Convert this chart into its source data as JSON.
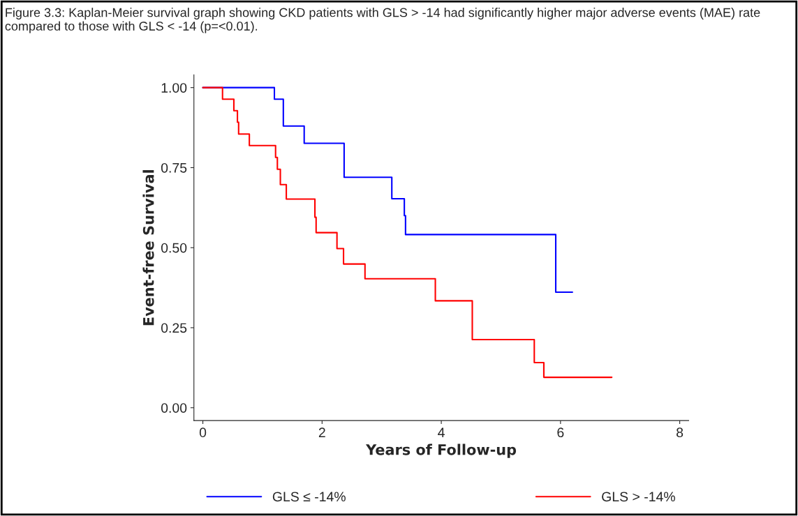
{
  "chart_data": {
    "type": "step",
    "title": "Figure 3.3: Kaplan-Meier survival graph showing CKD patients with GLS > -14 had significantly higher major adverse events (MAE) rate compared to those with GLS < -14 (p=<0.01).",
    "xlabel": "Years of Follow-up",
    "ylabel": "Event-free Survival",
    "xlim": [
      -0.15,
      8.15
    ],
    "xticks": [
      0,
      2,
      4,
      6,
      8
    ],
    "ylim": [
      -0.04,
      1.04
    ],
    "yticks": [
      {
        "value": 0,
        "label": "0.00"
      },
      {
        "value": 0.25,
        "label": "0.25"
      },
      {
        "value": 0.5,
        "label": "0.50"
      },
      {
        "value": 0.75,
        "label": "0.75"
      },
      {
        "value": 1,
        "label": "1.00"
      }
    ],
    "grid": false,
    "legend": "bottom",
    "series": [
      {
        "name": "GLS ≤ -14%",
        "color": "#0000ff",
        "x": [
          0,
          1.2,
          1.35,
          1.7,
          2.37,
          3.17,
          3.38,
          3.4,
          5.92,
          6.2
        ],
        "values": [
          1.0,
          0.964,
          0.88,
          0.826,
          0.72,
          0.653,
          0.6,
          0.541,
          0.361,
          0.361
        ]
      },
      {
        "name": "GLS > -14%",
        "color": "#ff0000",
        "x": [
          0,
          0.33,
          0.52,
          0.58,
          0.6,
          0.78,
          1.22,
          1.25,
          1.3,
          1.4,
          1.88,
          1.9,
          2.25,
          2.36,
          2.72,
          3.9,
          4.52,
          5.56,
          5.72,
          6.86
        ],
        "values": [
          1.0,
          0.964,
          0.928,
          0.892,
          0.855,
          0.819,
          0.782,
          0.745,
          0.697,
          0.652,
          0.595,
          0.547,
          0.497,
          0.449,
          0.403,
          0.334,
          0.213,
          0.141,
          0.095,
          0.095
        ]
      }
    ]
  }
}
